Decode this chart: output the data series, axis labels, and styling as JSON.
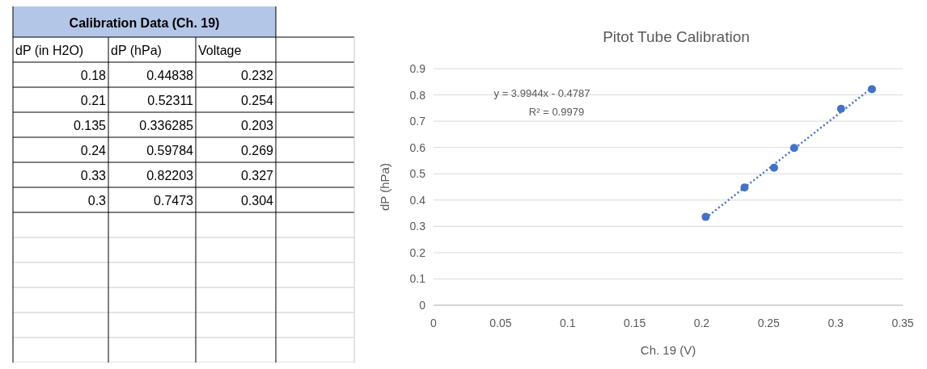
{
  "chart_data": [
    {
      "type": "other",
      "title": "Calibration Data (Ch. 19)",
      "categories": [
        "dP (in H2O)",
        "dP (hPa)",
        "Voltage"
      ],
      "annotations": [
        "0.18",
        "0.44838",
        "0.232",
        "0.21",
        "0.52311",
        "0.254",
        "0.135",
        "0.336285",
        "0.203",
        "0.24",
        "0.59784",
        "0.269",
        "0.33",
        "0.82203",
        "0.327",
        "0.3",
        "0.7473",
        "0.304"
      ]
    },
    {
      "type": "scatter",
      "title": "Pitot Tube Calibration",
      "xlabel": "Ch. 19 (V)",
      "ylabel": "dP (hPa)",
      "xlim": [
        0,
        0.35
      ],
      "xticks": [
        0,
        0.05,
        0.1,
        0.15,
        0.2,
        0.25,
        0.3,
        0.35
      ],
      "ylim": [
        0,
        0.9
      ],
      "yticks": [
        0,
        0.1,
        0.2,
        0.3,
        0.4,
        0.5,
        0.6,
        0.7,
        0.8,
        0.9
      ],
      "grid": "y",
      "marker": "circle",
      "annotations": [
        "y = 3.9944x - 0.4787",
        "R² = 0.9979"
      ],
      "series": [
        {
          "type": "scatter",
          "color": "#4472c4",
          "x": [
            0.232,
            0.254,
            0.203,
            0.269,
            0.327,
            0.304
          ],
          "values": [
            0.448,
            0.523,
            0.336,
            0.598,
            0.822,
            0.747
          ]
        },
        {
          "type": "line",
          "color": "#4472c4",
          "line_style": "dotted",
          "marker": "none",
          "x": [
            0.203,
            0.327
          ],
          "values": [
            0.332,
            0.827
          ]
        }
      ]
    }
  ]
}
